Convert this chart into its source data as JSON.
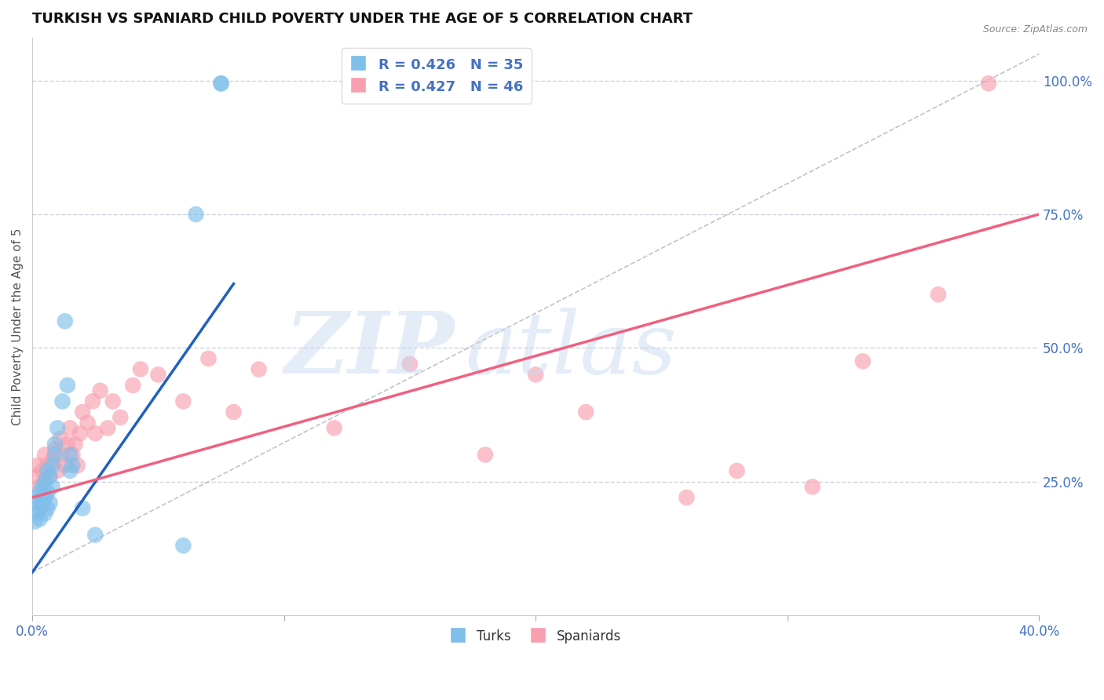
{
  "title": "TURKISH VS SPANIARD CHILD POVERTY UNDER THE AGE OF 5 CORRELATION CHART",
  "source": "Source: ZipAtlas.com",
  "ylabel": "Child Poverty Under the Age of 5",
  "ytick_labels": [
    "100.0%",
    "75.0%",
    "50.0%",
    "25.0%"
  ],
  "ytick_values": [
    1.0,
    0.75,
    0.5,
    0.25
  ],
  "legend_turks": "R = 0.426   N = 35",
  "legend_spaniards": "R = 0.427   N = 46",
  "turks_color": "#7fbfea",
  "spaniards_color": "#f8a0b0",
  "turks_line_color": "#2060c0",
  "spaniards_line_color": "#f06080",
  "xlim": [
    0.0,
    0.4
  ],
  "ylim": [
    0.0,
    1.08
  ],
  "background_color": "#ffffff",
  "grid_color": "#c8d0d8",
  "turks_x": [
    0.001,
    0.001,
    0.002,
    0.002,
    0.003,
    0.003,
    0.003,
    0.004,
    0.004,
    0.004,
    0.005,
    0.005,
    0.005,
    0.006,
    0.006,
    0.006,
    0.007,
    0.007,
    0.008,
    0.008,
    0.009,
    0.009,
    0.01,
    0.012,
    0.013,
    0.014,
    0.015,
    0.015,
    0.016,
    0.02,
    0.025,
    0.06,
    0.065,
    0.075,
    0.075
  ],
  "turks_y": [
    0.175,
    0.21,
    0.19,
    0.22,
    0.18,
    0.2,
    0.23,
    0.21,
    0.24,
    0.22,
    0.19,
    0.22,
    0.25,
    0.2,
    0.23,
    0.27,
    0.21,
    0.26,
    0.24,
    0.28,
    0.3,
    0.32,
    0.35,
    0.4,
    0.55,
    0.43,
    0.3,
    0.27,
    0.28,
    0.2,
    0.15,
    0.13,
    0.75,
    0.995,
    0.995
  ],
  "spaniards_x": [
    0.001,
    0.002,
    0.003,
    0.004,
    0.005,
    0.005,
    0.006,
    0.007,
    0.008,
    0.009,
    0.01,
    0.011,
    0.012,
    0.013,
    0.014,
    0.015,
    0.016,
    0.017,
    0.018,
    0.019,
    0.02,
    0.022,
    0.024,
    0.025,
    0.027,
    0.03,
    0.032,
    0.035,
    0.04,
    0.043,
    0.05,
    0.06,
    0.07,
    0.08,
    0.09,
    0.12,
    0.15,
    0.18,
    0.2,
    0.22,
    0.26,
    0.28,
    0.31,
    0.33,
    0.36,
    0.38
  ],
  "spaniards_y": [
    0.26,
    0.28,
    0.24,
    0.27,
    0.25,
    0.3,
    0.28,
    0.26,
    0.29,
    0.31,
    0.27,
    0.33,
    0.3,
    0.28,
    0.32,
    0.35,
    0.3,
    0.32,
    0.28,
    0.34,
    0.38,
    0.36,
    0.4,
    0.34,
    0.42,
    0.35,
    0.4,
    0.37,
    0.43,
    0.46,
    0.45,
    0.4,
    0.48,
    0.38,
    0.46,
    0.35,
    0.47,
    0.3,
    0.45,
    0.38,
    0.22,
    0.27,
    0.24,
    0.475,
    0.6,
    0.995
  ],
  "turks_line_x": [
    0.0,
    0.08
  ],
  "turks_line_y": [
    0.08,
    0.62
  ],
  "spaniards_line_x": [
    0.0,
    0.4
  ],
  "spaniards_line_y": [
    0.22,
    0.75
  ],
  "diag_line_x": [
    0.0,
    0.4
  ],
  "diag_line_y": [
    0.08,
    1.05
  ]
}
